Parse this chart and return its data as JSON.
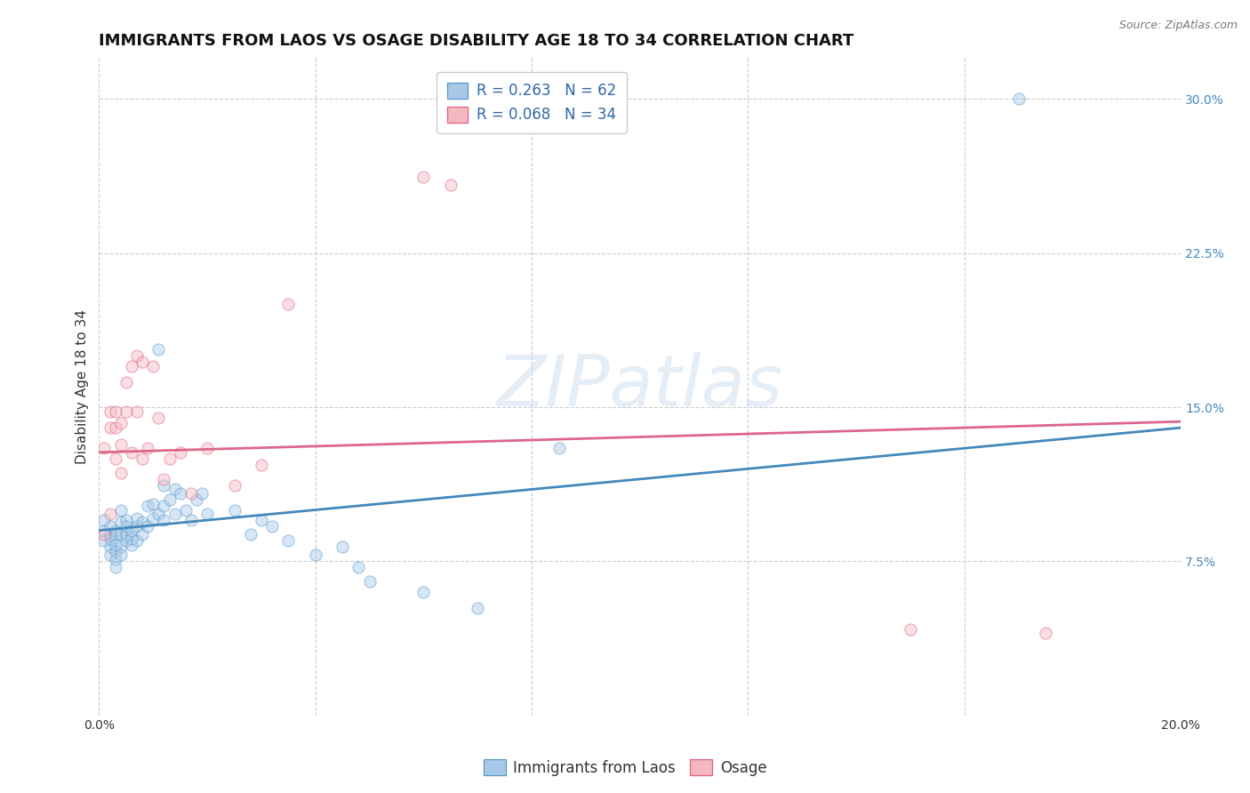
{
  "title": "IMMIGRANTS FROM LAOS VS OSAGE DISABILITY AGE 18 TO 34 CORRELATION CHART",
  "source": "Source: ZipAtlas.com",
  "xlabel_label": "Immigrants from Laos",
  "ylabel_label": "Disability Age 18 to 34",
  "xlim": [
    0.0,
    0.2
  ],
  "ylim": [
    0.0,
    0.32
  ],
  "xticks": [
    0.0,
    0.04,
    0.08,
    0.12,
    0.16,
    0.2
  ],
  "yticks_right": [
    0.075,
    0.15,
    0.225,
    0.3
  ],
  "ytick_right_labels": [
    "7.5%",
    "15.0%",
    "22.5%",
    "30.0%"
  ],
  "xtick_labels": [
    "0.0%",
    "",
    "",
    "",
    "",
    "20.0%"
  ],
  "background_color": "#ffffff",
  "grid_color": "#cccccc",
  "blue_color": "#a8c8e8",
  "pink_color": "#f4b8c0",
  "blue_edge_color": "#5599cc",
  "pink_edge_color": "#e06080",
  "blue_line_color": "#4488bb",
  "pink_line_color": "#dd6688",
  "legend_R_blue": "0.263",
  "legend_N_blue": "62",
  "legend_R_pink": "0.068",
  "legend_N_pink": "34",
  "blue_scatter_x": [
    0.001,
    0.001,
    0.001,
    0.002,
    0.002,
    0.002,
    0.002,
    0.002,
    0.003,
    0.003,
    0.003,
    0.003,
    0.003,
    0.003,
    0.004,
    0.004,
    0.004,
    0.004,
    0.004,
    0.005,
    0.005,
    0.005,
    0.005,
    0.006,
    0.006,
    0.006,
    0.007,
    0.007,
    0.007,
    0.008,
    0.008,
    0.009,
    0.009,
    0.01,
    0.01,
    0.011,
    0.011,
    0.012,
    0.012,
    0.012,
    0.013,
    0.014,
    0.014,
    0.015,
    0.016,
    0.017,
    0.018,
    0.019,
    0.02,
    0.025,
    0.028,
    0.03,
    0.032,
    0.035,
    0.04,
    0.045,
    0.048,
    0.05,
    0.06,
    0.07,
    0.085,
    0.17
  ],
  "blue_scatter_y": [
    0.09,
    0.085,
    0.095,
    0.088,
    0.092,
    0.082,
    0.078,
    0.086,
    0.09,
    0.083,
    0.088,
    0.08,
    0.076,
    0.072,
    0.088,
    0.094,
    0.1,
    0.082,
    0.078,
    0.095,
    0.085,
    0.088,
    0.092,
    0.09,
    0.083,
    0.086,
    0.092,
    0.085,
    0.096,
    0.088,
    0.094,
    0.092,
    0.102,
    0.096,
    0.103,
    0.178,
    0.098,
    0.102,
    0.112,
    0.095,
    0.105,
    0.098,
    0.11,
    0.108,
    0.1,
    0.095,
    0.105,
    0.108,
    0.098,
    0.1,
    0.088,
    0.095,
    0.092,
    0.085,
    0.078,
    0.082,
    0.072,
    0.065,
    0.06,
    0.052,
    0.13,
    0.3
  ],
  "pink_scatter_x": [
    0.001,
    0.001,
    0.002,
    0.002,
    0.002,
    0.003,
    0.003,
    0.003,
    0.004,
    0.004,
    0.004,
    0.005,
    0.005,
    0.006,
    0.006,
    0.007,
    0.007,
    0.008,
    0.008,
    0.009,
    0.01,
    0.011,
    0.012,
    0.013,
    0.015,
    0.017,
    0.02,
    0.025,
    0.03,
    0.035,
    0.06,
    0.065,
    0.15,
    0.175
  ],
  "pink_scatter_y": [
    0.088,
    0.13,
    0.14,
    0.148,
    0.098,
    0.14,
    0.148,
    0.125,
    0.142,
    0.132,
    0.118,
    0.162,
    0.148,
    0.17,
    0.128,
    0.175,
    0.148,
    0.172,
    0.125,
    0.13,
    0.17,
    0.145,
    0.115,
    0.125,
    0.128,
    0.108,
    0.13,
    0.112,
    0.122,
    0.2,
    0.262,
    0.258,
    0.042,
    0.04
  ],
  "blue_trend_y_start": 0.09,
  "blue_trend_y_end": 0.14,
  "pink_trend_y_start": 0.128,
  "pink_trend_y_end": 0.143,
  "watermark": "ZIPatlas",
  "marker_size": 90,
  "marker_alpha": 0.45,
  "title_fontsize": 13,
  "axis_label_fontsize": 11,
  "tick_fontsize": 10,
  "legend_fontsize": 12
}
